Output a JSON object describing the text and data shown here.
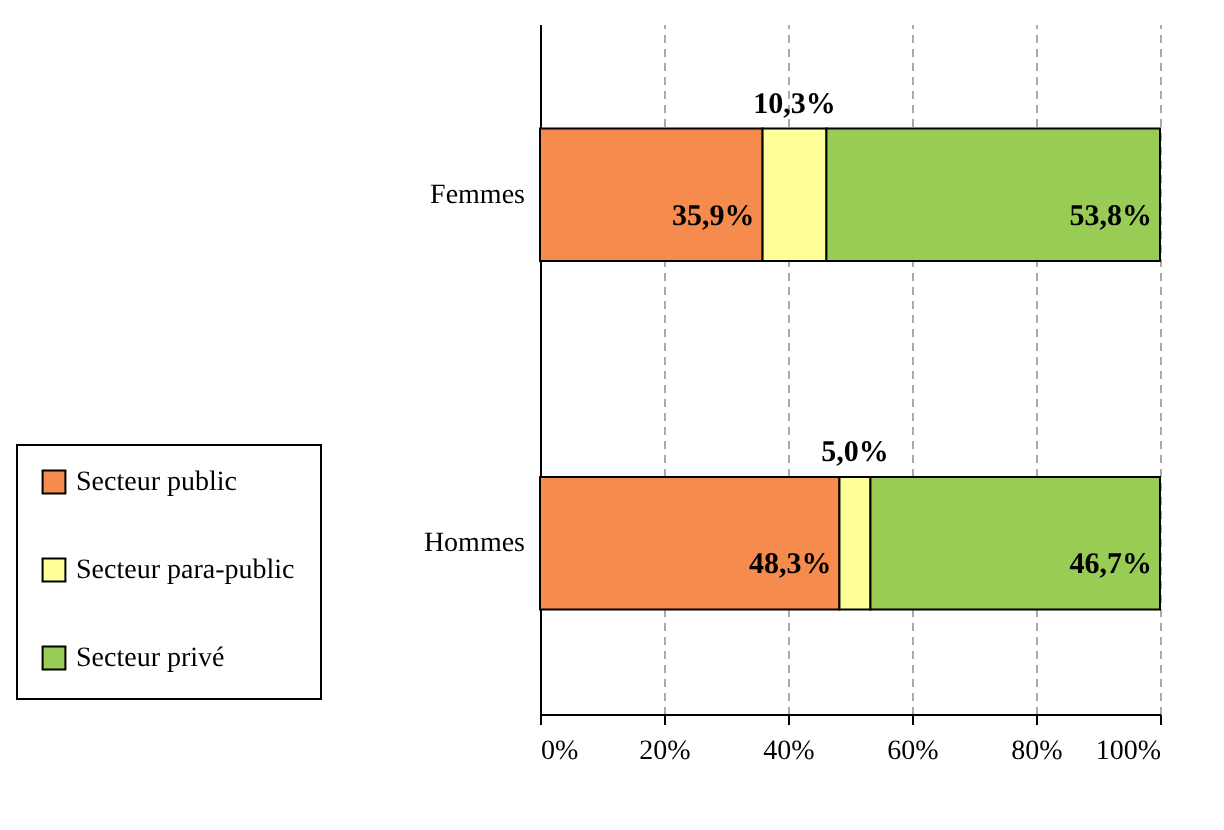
{
  "chart_data": {
    "type": "bar",
    "orientation": "horizontal",
    "stacked": true,
    "categories": [
      "Femmes",
      "Hommes"
    ],
    "series": [
      {
        "name": "Secteur public",
        "color": "#f58b4c",
        "values": [
          35.9,
          48.3
        ],
        "value_labels": [
          "35,9%",
          "48,3%"
        ]
      },
      {
        "name": "Secteur para-public",
        "color": "#ffff99",
        "values": [
          10.3,
          5.0
        ],
        "value_labels": [
          "10,3%",
          "5,0%"
        ]
      },
      {
        "name": "Secteur privé",
        "color": "#99cc55",
        "values": [
          53.8,
          46.7
        ],
        "value_labels": [
          "53,8%",
          "46,7%"
        ]
      }
    ],
    "xlim": [
      0,
      100
    ],
    "xticks": [
      {
        "value": 0,
        "label": "0%"
      },
      {
        "value": 20,
        "label": "20%"
      },
      {
        "value": 40,
        "label": "40%"
      },
      {
        "value": 60,
        "label": "60%"
      },
      {
        "value": 80,
        "label": "80%"
      },
      {
        "value": 100,
        "label": "100%"
      }
    ],
    "grid": "x",
    "legend": "bottom left"
  }
}
